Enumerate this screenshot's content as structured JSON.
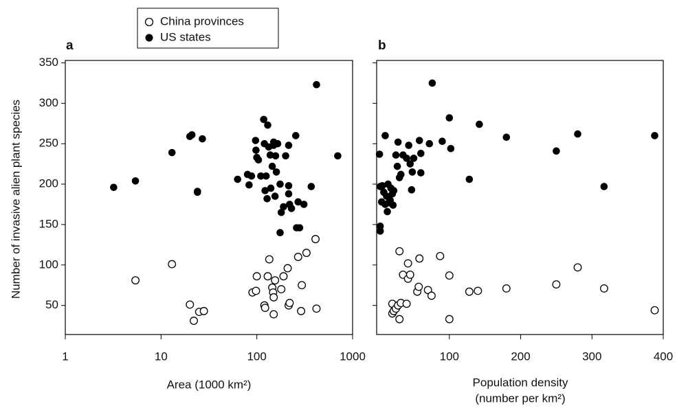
{
  "chart_data": [
    {
      "type": "scatter",
      "panel": "a",
      "xlabel": "Area (1000 km²)",
      "ylabel": "Number of invasive alien plant species",
      "xscale": "log",
      "xlim": [
        1,
        1000
      ],
      "xticks": [
        1,
        10,
        100,
        1000
      ],
      "ylim": [
        14,
        353
      ],
      "yticks": [
        50,
        100,
        150,
        200,
        250,
        300,
        350
      ],
      "series": [
        {
          "name": "China provinces",
          "color": "#000000",
          "marker": "open",
          "x": [
            5.4,
            13,
            20,
            22,
            25,
            28,
            90,
            98,
            100,
            120,
            122,
            130,
            135,
            145,
            148,
            150,
            155,
            150,
            180,
            190,
            210,
            215,
            220,
            270,
            290,
            295,
            330,
            410,
            420
          ],
          "values": [
            81,
            101,
            51,
            31,
            42,
            43,
            66,
            68,
            86,
            50,
            47,
            86,
            107,
            72,
            66,
            60,
            81,
            39,
            70,
            86,
            96,
            50,
            53,
            110,
            43,
            75,
            115,
            132,
            46
          ]
        },
        {
          "name": "US states",
          "color": "#000000",
          "marker": "filled",
          "x": [
            3.2,
            5.4,
            13,
            20,
            21,
            24,
            24,
            27,
            63,
            80,
            83,
            88,
            97,
            98,
            100,
            104,
            110,
            118,
            120,
            122,
            125,
            128,
            130,
            133,
            138,
            140,
            145,
            150,
            150,
            155,
            157,
            160,
            165,
            175,
            175,
            180,
            190,
            200,
            215,
            215,
            215,
            220,
            230,
            255,
            260,
            270,
            280,
            310,
            370,
            420,
            700
          ],
          "values": [
            196,
            204,
            239,
            259,
            261,
            191,
            190,
            256,
            206,
            212,
            199,
            210,
            254,
            242,
            233,
            230,
            210,
            280,
            250,
            192,
            210,
            182,
            273,
            246,
            236,
            195,
            222,
            248,
            252,
            185,
            235,
            215,
            250,
            200,
            140,
            165,
            172,
            235,
            248,
            198,
            188,
            175,
            170,
            260,
            146,
            178,
            146,
            175,
            197,
            323,
            235
          ]
        }
      ]
    },
    {
      "type": "scatter",
      "panel": "b",
      "xlabel": [
        "Population density",
        "(number per km²)"
      ],
      "xlim": [
        -2,
        400
      ],
      "xticks": [
        100,
        200,
        300,
        400
      ],
      "ylim": [
        14,
        353
      ],
      "yticks": [
        50,
        100,
        150,
        200,
        250,
        300,
        350
      ],
      "series": [
        {
          "color": "#000000",
          "marker": "open",
          "x": [
            20,
            20,
            22,
            25,
            28,
            30,
            30,
            32,
            35,
            40,
            42,
            42,
            45,
            55,
            57,
            58,
            70,
            75,
            87,
            100,
            100,
            128,
            140,
            180,
            250,
            280,
            317,
            388
          ],
          "values": [
            52,
            40,
            43,
            46,
            50,
            117,
            33,
            53,
            88,
            52,
            102,
            83,
            88,
            67,
            73,
            108,
            69,
            62,
            111,
            33,
            87,
            67,
            68,
            71,
            76,
            97,
            71,
            44
          ]
        },
        {
          "color": "#000000",
          "marker": "filled",
          "x": [
            2,
            3,
            3,
            3,
            5,
            6,
            8,
            10,
            10,
            12,
            13,
            14,
            15,
            17,
            18,
            20,
            21,
            22,
            25,
            27,
            30,
            28,
            32,
            35,
            40,
            43,
            45,
            47,
            48,
            50,
            58,
            60,
            60,
            72,
            76,
            90,
            100,
            102,
            128,
            142,
            180,
            250,
            280,
            317,
            388
          ],
          "values": [
            237,
            197,
            148,
            142,
            178,
            198,
            190,
            260,
            175,
            185,
            166,
            200,
            177,
            180,
            195,
            188,
            174,
            192,
            236,
            222,
            208,
            252,
            212,
            236,
            232,
            248,
            225,
            193,
            215,
            232,
            254,
            214,
            238,
            250,
            325,
            253,
            282,
            244,
            206,
            274,
            258,
            241,
            262,
            197,
            260
          ]
        }
      ]
    }
  ]
}
